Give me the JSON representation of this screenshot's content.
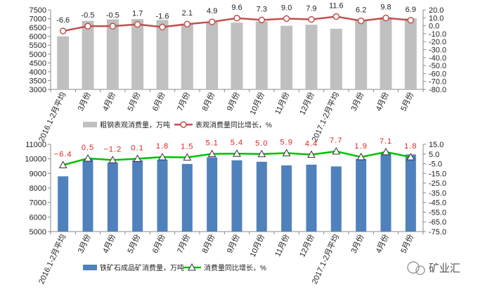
{
  "chart_data": [
    {
      "type": "bar",
      "categories": [
        "2016.1-2月平均",
        "3月份",
        "4月份",
        "5月份",
        "6月份",
        "7月份",
        "8月份",
        "9月份",
        "10月份",
        "11月份",
        "12月份",
        "2017.1-2月平均",
        "3月份",
        "4月份",
        "5月份"
      ],
      "series": [
        {
          "name": "粗钢表观消费量，万吨",
          "kind": "bar",
          "axis": "left",
          "color": "#c0c0c0",
          "values": [
            6000,
            6880,
            6960,
            6980,
            6930,
            6710,
            6820,
            6780,
            6840,
            6600,
            6660,
            6430,
            6880,
            7080,
            7020
          ]
        },
        {
          "name": "表观消费量同比增长，%",
          "kind": "line",
          "axis": "right",
          "color": "#c0504d",
          "values": [
            -6.6,
            -0.5,
            -0.5,
            1.7,
            -1.6,
            2.1,
            4.9,
            9.6,
            7.3,
            9.0,
            7.9,
            11.6,
            6.2,
            9.8,
            6.9
          ],
          "labels": [
            "-6.6",
            "-0.5",
            "-0.5",
            "1.7",
            "-1.6",
            "2.1",
            "4.9",
            "9.6",
            "7.3",
            "9.0",
            "7.9",
            "11.6",
            "6.2",
            "9.8",
            "6.9"
          ]
        }
      ],
      "left_axis": {
        "min": 3000,
        "max": 7500,
        "step": 500,
        "ticks": [
          "3000",
          "3500",
          "4000",
          "4500",
          "5000",
          "5500",
          "6000",
          "6500",
          "7000",
          "7500"
        ]
      },
      "right_axis": {
        "min": -80,
        "max": 20,
        "step": 10,
        "ticks": [
          "-80.0",
          "-70.0",
          "-60.0",
          "-50.0",
          "-40.0",
          "-30.0",
          "-20.0",
          "-10.0",
          "0.0",
          "10.0",
          "20.0"
        ]
      },
      "grid": false,
      "legend": "bottom"
    },
    {
      "type": "bar",
      "categories": [
        "2016.1-2月平均",
        "3月份",
        "4月份",
        "5月份",
        "6月份",
        "7月份",
        "8月份",
        "9月份",
        "10月份",
        "11月份",
        "12月份",
        "2017.1-2月平均",
        "3月份",
        "4月份",
        "5月份"
      ],
      "series": [
        {
          "name": "铁矿石成品矿消费量，万吨",
          "kind": "bar",
          "axis": "left",
          "color": "#4f81bd",
          "values": [
            8800,
            10000,
            9750,
            9900,
            9950,
            9650,
            10100,
            9900,
            9800,
            9550,
            9600,
            9480,
            10000,
            10400,
            10300
          ]
        },
        {
          "name": "消费量同比增长，%",
          "kind": "line",
          "axis": "right",
          "color": "#00c000",
          "values": [
            -6.4,
            0.5,
            -1.2,
            0.1,
            1.8,
            1.5,
            5.1,
            5.4,
            5.0,
            5.9,
            4.4,
            7.7,
            1.9,
            7.1,
            1.8
          ],
          "labels": [
            "−6.4",
            "0.5",
            "−1.2",
            "0.1",
            "1.8",
            "1.5",
            "5.1",
            "5.4",
            "5.0",
            "5.9",
            "4.4",
            "7.7",
            "1.9",
            "7.1",
            "1.8"
          ]
        }
      ],
      "left_axis": {
        "min": 5000,
        "max": 11000,
        "step": 1000,
        "ticks": [
          "5000",
          "6000",
          "7000",
          "8000",
          "9000",
          "10000",
          "11000"
        ]
      },
      "right_axis": {
        "min": -75,
        "max": 15,
        "step": 10,
        "ticks": [
          "-75.0",
          "-65.0",
          "-55.0",
          "-45.0",
          "-35.0",
          "-25.0",
          "-15.0",
          "-5.0",
          "5.0",
          "15.0"
        ]
      },
      "grid": false,
      "legend": "bottom"
    }
  ],
  "watermark": {
    "text": "矿业汇",
    "icon": "wechat-icon"
  }
}
